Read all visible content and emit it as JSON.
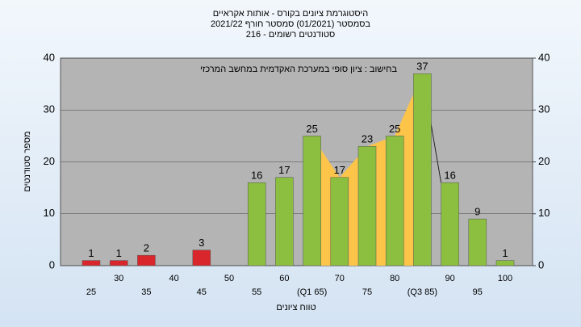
{
  "chart_data": {
    "type": "bar",
    "title": [
      "היסטוגרמת ציונים בקורס - אותות אקראיים",
      "בסמסטר  (01/2021)  סמסטר חורף 2021/22",
      "סטודנטים רשומים - 216"
    ],
    "annotation": "בחישוב : ציון סופי במערכת האקדמית במחשב המרכזי",
    "x_label": "טווח ציונים",
    "y_label": "מספר סטודנטים",
    "categories": [
      "25",
      "30",
      "35",
      "40",
      "45",
      "50",
      "55",
      "60",
      "(Q1 65)",
      "70",
      "75",
      "80",
      "(Q3 85)",
      "90",
      "95",
      "100"
    ],
    "values": [
      1,
      1,
      2,
      null,
      3,
      null,
      16,
      17,
      25,
      17,
      23,
      25,
      37,
      16,
      9,
      1
    ],
    "colors": [
      "#d9262c",
      "#d9262c",
      "#d9262c",
      "#d9262c",
      "#d9262c",
      "#d9262c",
      "#8cbf3f",
      "#8cbf3f",
      "#8cbf3f",
      "#8cbf3f",
      "#8cbf3f",
      "#8cbf3f",
      "#8cbf3f",
      "#8cbf3f",
      "#8cbf3f",
      "#8cbf3f"
    ],
    "area_color": "#fcc54a",
    "ylim": [
      0,
      40
    ],
    "yticks": [
      0,
      10,
      20,
      30,
      40
    ],
    "y2lim": [
      0,
      40
    ],
    "y2ticks": [
      0,
      10,
      20,
      30,
      40
    ],
    "grid": true
  }
}
